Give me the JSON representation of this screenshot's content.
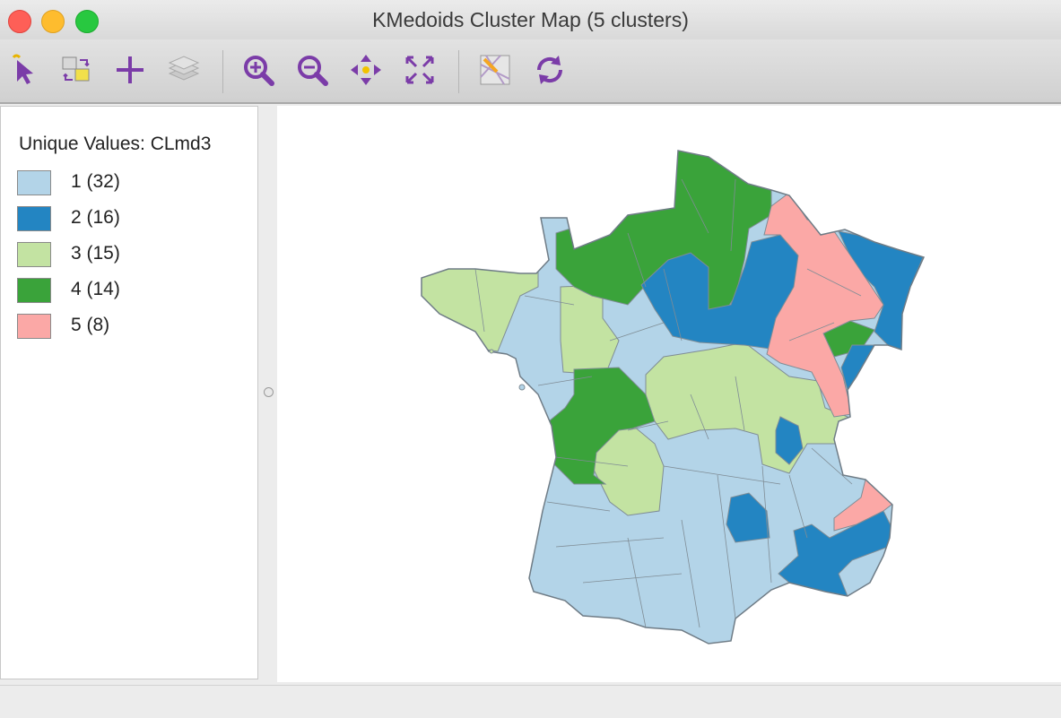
{
  "window": {
    "title": "KMedoids Cluster Map (5 clusters)"
  },
  "toolbar": {
    "tools": [
      {
        "name": "select-tool"
      },
      {
        "name": "toggle-selection-tool"
      },
      {
        "name": "add-layer-tool"
      },
      {
        "name": "layers-tool"
      },
      {
        "name": "zoom-in-tool"
      },
      {
        "name": "zoom-out-tool"
      },
      {
        "name": "pan-tool"
      },
      {
        "name": "full-extent-tool"
      },
      {
        "name": "basemap-tool"
      },
      {
        "name": "refresh-tool"
      }
    ]
  },
  "legend": {
    "title": "Unique Values: CLmd3",
    "items": [
      {
        "label": "1 (32)",
        "color": "#b3d4e8"
      },
      {
        "label": "2 (16)",
        "color": "#2385c2"
      },
      {
        "label": "3 (15)",
        "color": "#c3e3a2"
      },
      {
        "label": "4 (14)",
        "color": "#3aa33a"
      },
      {
        "label": "5 (8)",
        "color": "#fba8a6"
      }
    ]
  },
  "colors": {
    "border": "#7f8c95",
    "traffic_red": "#fe5f57",
    "traffic_yellow": "#febc2e",
    "traffic_green": "#28c840",
    "tool_purple": "#7b3ca8"
  }
}
